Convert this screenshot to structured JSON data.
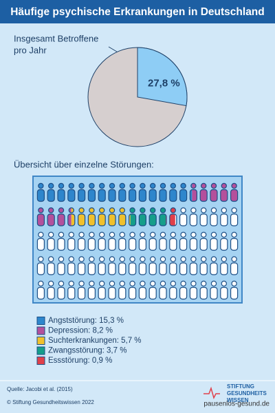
{
  "title": "Häufige psychische Erkrankungen in Deutschland",
  "chart_data": {
    "type": "pie",
    "annotation": [
      "Insgesamt Betroffene",
      "pro Jahr"
    ],
    "values": [
      27.8
    ],
    "value_labels": [
      "27,8 %"
    ],
    "color": "#8ecdf5",
    "rest_color": "#d6cfcf"
  },
  "overview": {
    "heading": "Übersicht über einzelne Störungen:",
    "items": [
      {
        "label": "Angststörung: 15,3 %",
        "value": 15.3,
        "color": "#2e86cc"
      },
      {
        "label": "Depression: 8,2 %",
        "value": 8.2,
        "color": "#b4509c"
      },
      {
        "label": "Suchterkrankungen: 5,7 %",
        "value": 5.7,
        "color": "#f0c02c"
      },
      {
        "label": "Zwangsstörung: 3,7 %",
        "value": 3.7,
        "color": "#159e8a"
      },
      {
        "label": "Essstörung: 0,9 %",
        "value": 0.9,
        "color": "#e0404a"
      }
    ]
  },
  "footer": {
    "source": "Quelle: Jacobi et al. (2015)",
    "copyright": "© Stiftung Gesundheitswissen 2022",
    "logo": [
      "STIFTUNG",
      "GESUNDHEITS",
      "WISSEN"
    ],
    "watermark": "pausenlos-gesund.de"
  }
}
